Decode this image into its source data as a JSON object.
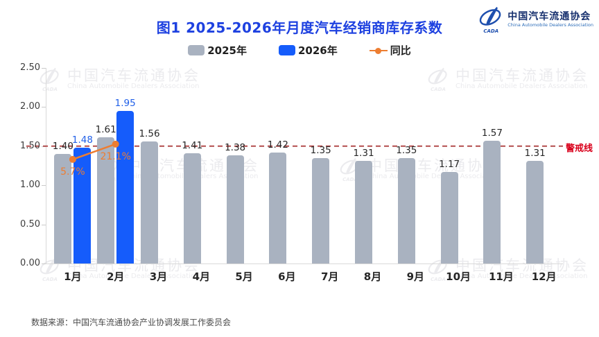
{
  "header": {
    "title": "图1  2025-2026年月度汽车经销商库存系数",
    "title_color": "#1e41e0",
    "logo": {
      "org_cn": "中国汽车流通协会",
      "org_en": "China Automobile Dealers Association",
      "abbr": "CADA",
      "color": "#1e4fae"
    }
  },
  "legend": {
    "items": [
      {
        "label": "2025年",
        "marker": "swatch",
        "color": "#a9b2c0"
      },
      {
        "label": "2026年",
        "marker": "swatch",
        "color": "#155cfb"
      },
      {
        "label": "同比",
        "marker": "line-dot",
        "color": "#ed7d31"
      }
    ]
  },
  "chart_data": {
    "type": "bar",
    "title": "图1  2025-2026年月度汽车经销商库存系数",
    "categories": [
      "1月",
      "2月",
      "3月",
      "4月",
      "5月",
      "6月",
      "7月",
      "8月",
      "9月",
      "10月",
      "11月",
      "12月"
    ],
    "series": [
      {
        "name": "2025年",
        "type": "bar",
        "color": "#a9b2c0",
        "label_color": "#262626",
        "values": [
          1.4,
          1.61,
          1.56,
          1.41,
          1.38,
          1.42,
          1.35,
          1.31,
          1.35,
          1.17,
          1.57,
          1.31
        ]
      },
      {
        "name": "2026年",
        "type": "bar",
        "color": "#155cfb",
        "label_color": "#2160e8",
        "values": [
          1.48,
          1.95,
          null,
          null,
          null,
          null,
          null,
          null,
          null,
          null,
          null,
          null
        ]
      },
      {
        "name": "同比",
        "type": "line",
        "color": "#ed7d31",
        "values_pct": [
          5.7,
          21.1,
          null,
          null,
          null,
          null,
          null,
          null,
          null,
          null,
          null,
          null
        ],
        "labels": [
          "5.7%",
          "21.1%"
        ]
      }
    ],
    "yaxis": {
      "min": 0,
      "max": 2.5,
      "step": 0.5,
      "ticks": [
        "0.00",
        "0.50",
        "1.00",
        "1.50",
        "2.00",
        "2.50"
      ]
    },
    "warning_line": {
      "value": 1.5,
      "label": "警戒线",
      "line_color": "#b24c4c",
      "label_color": "#d9001b"
    },
    "grid": false,
    "legend_position": "top"
  },
  "watermark": {
    "line1": "中国汽车流通协会",
    "line2": "China Automobile Dealers Association",
    "abbr": "CADA"
  },
  "footer": {
    "source": "数据来源：中国汽车流通协会产业协调发展工作委员会"
  }
}
